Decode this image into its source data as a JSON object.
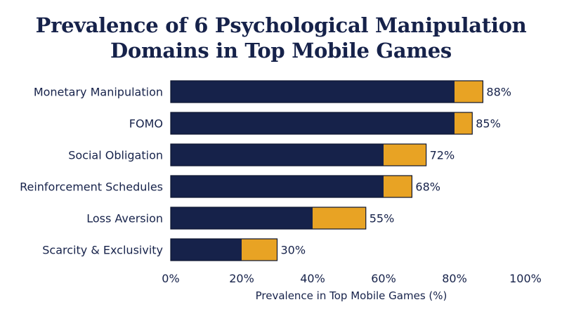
{
  "title_line1": "Prevalence of 6 Psychological Manipulation",
  "title_line2": "Domains in Top Mobile Games",
  "colors": {
    "bar_main": "#16224a",
    "bar_accent": "#e8a324",
    "text": "#16224a"
  },
  "chart_data": {
    "type": "bar",
    "orientation": "horizontal",
    "title": "Prevalence of 6 Psychological Manipulation Domains in Top Mobile Games",
    "xlabel": "Prevalence in Top Mobile Games (%)",
    "ylabel": "",
    "xlim": [
      0,
      100
    ],
    "xticks": [
      "0%",
      "20%",
      "40%",
      "60%",
      "80%",
      "100%"
    ],
    "categories": [
      "Monetary Manipulation",
      "FOMO",
      "Social Obligation",
      "Reinforcement Schedules",
      "Loss Aversion",
      "Scarcity & Exclusivity"
    ],
    "values": [
      88,
      85,
      72,
      68,
      55,
      30
    ],
    "value_labels": [
      "88%",
      "85%",
      "72%",
      "68%",
      "55%",
      "30%"
    ],
    "accent_start": [
      80,
      80,
      60,
      60,
      40,
      20
    ],
    "grid": false,
    "legend": "none"
  }
}
